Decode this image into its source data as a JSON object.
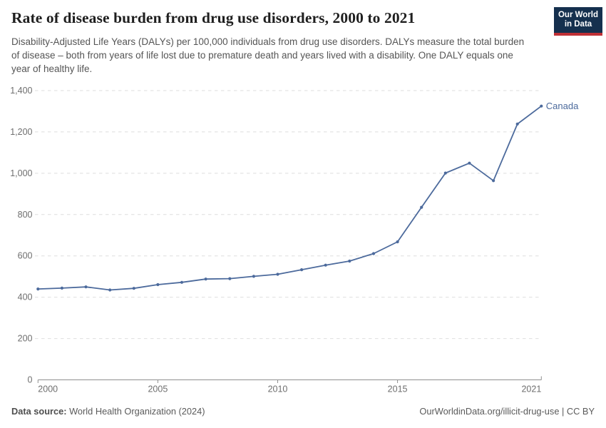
{
  "header": {
    "title": "Rate of disease burden from drug use disorders, 2000 to 2021",
    "subtitle": "Disability-Adjusted Life Years (DALYs) per 100,000 individuals from drug use disorders. DALYs measure the total burden of disease – both from years of life lost due to premature death and years lived with a disability. One DALY equals one year of healthy life.",
    "logo": {
      "line1": "Our World",
      "line2": "in Data",
      "bg_color": "#15304e",
      "accent_color": "#bf3036"
    }
  },
  "chart_data": {
    "type": "line",
    "title": "Rate of disease burden from drug use disorders, 2000 to 2021",
    "xlabel": "",
    "ylabel": "",
    "xlim": [
      2000,
      2021
    ],
    "ylim": [
      0,
      1400
    ],
    "grid": "horizontal-dashed",
    "legend_position": "end-of-line-label",
    "xticks": {
      "values": [
        2000,
        2005,
        2010,
        2015,
        2021
      ],
      "labels": [
        "2000",
        "2005",
        "2010",
        "2015",
        "2021"
      ]
    },
    "yticks": {
      "values": [
        0,
        200,
        400,
        600,
        800,
        1000,
        1200,
        1400
      ],
      "labels": [
        "0",
        "200",
        "400",
        "600",
        "800",
        "1,000",
        "1,200",
        "1,400"
      ]
    },
    "series": [
      {
        "name": "Canada",
        "color": "#4c6a9c",
        "x": [
          2000,
          2001,
          2002,
          2003,
          2004,
          2005,
          2006,
          2007,
          2008,
          2009,
          2010,
          2011,
          2012,
          2013,
          2014,
          2015,
          2016,
          2017,
          2018,
          2019,
          2020,
          2021
        ],
        "values": [
          440,
          444,
          450,
          435,
          443,
          461,
          472,
          488,
          490,
          501,
          511,
          533,
          555,
          575,
          611,
          668,
          835,
          1001,
          1049,
          964,
          1238,
          1325
        ]
      }
    ]
  },
  "footer": {
    "source_label": "Data source:",
    "source_text": " World Health Organization (2024)",
    "link_text": "OurWorldinData.org/illicit-drug-use | CC BY"
  },
  "colors": {
    "title": "#1f1f1f",
    "subtitle": "#555555",
    "tick_label": "#6e6e6e",
    "gridline": "#dedede",
    "axis": "#8f8f8f",
    "series_line": "#4c6a9c",
    "footer_text": "#5a5a5a"
  }
}
